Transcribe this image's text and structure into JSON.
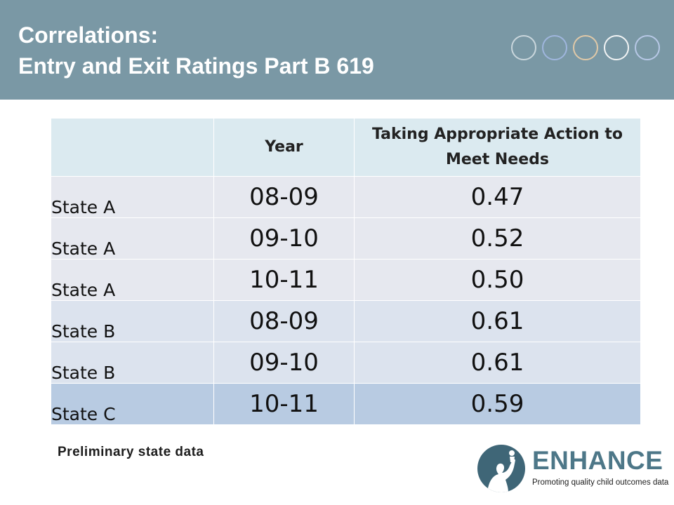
{
  "header": {
    "title_line1": "Correlations:",
    "title_line2": "Entry and Exit Ratings Part B 619",
    "background_color": "#7a98a5",
    "circle_colors": [
      "#c9d6dc",
      "#9fb6dd",
      "#e0c9a8",
      "#f2f4f5",
      "#b7c8e6"
    ]
  },
  "table": {
    "headers": [
      "",
      "Year",
      "Taking Appropriate Action to Meet Needs"
    ],
    "rows": [
      {
        "state": "State A",
        "year": "08-09",
        "value": "0.47"
      },
      {
        "state": "State A",
        "year": "09-10",
        "value": "0.52"
      },
      {
        "state": "State A",
        "year": "10-11",
        "value": "0.50"
      },
      {
        "state": "State B",
        "year": "08-09",
        "value": "0.61"
      },
      {
        "state": "State B",
        "year": "09-10",
        "value": "0.61"
      },
      {
        "state": "State C",
        "year": "10-11",
        "value": "0.59"
      }
    ]
  },
  "footer": {
    "note": "Preliminary state data"
  },
  "logo": {
    "name": "ENHANCE",
    "tagline": "Promoting quality child outcomes data",
    "color": "#4d7788"
  }
}
